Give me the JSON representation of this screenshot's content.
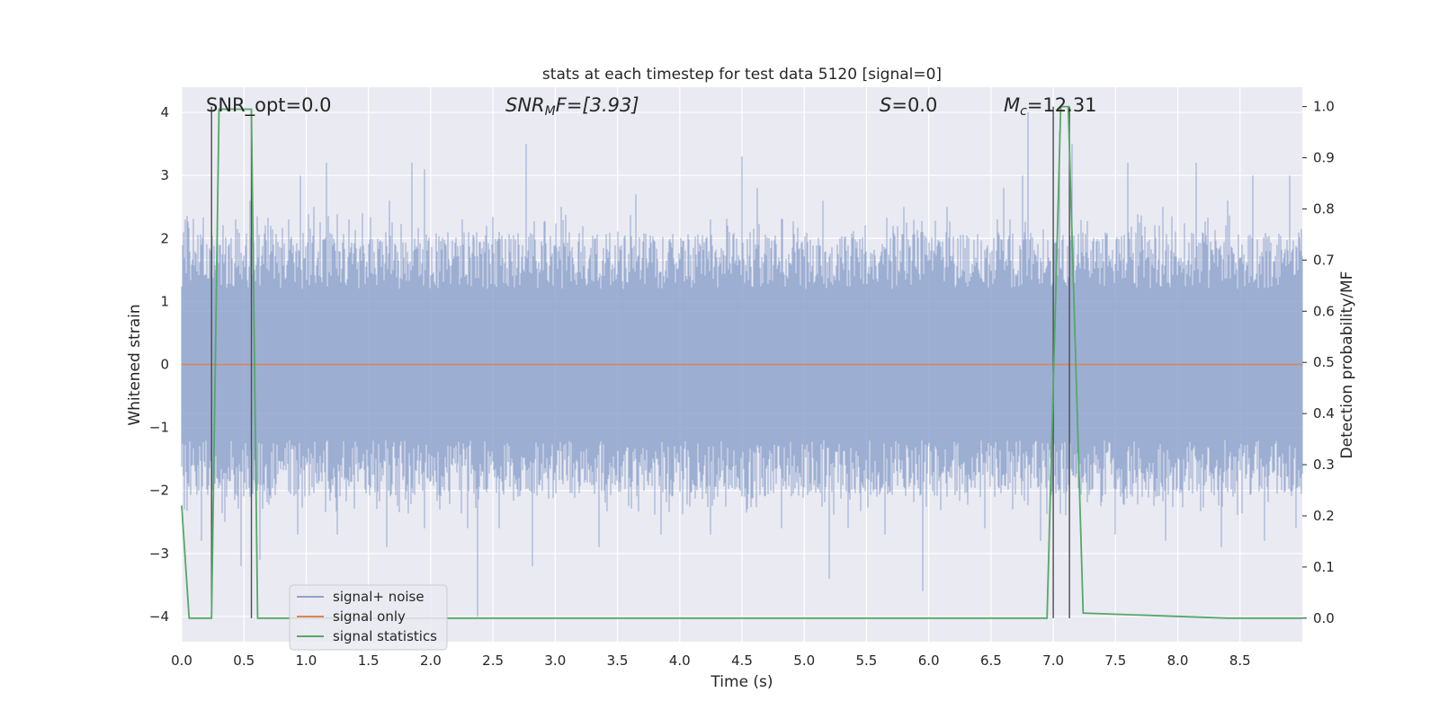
{
  "chart_data": {
    "type": "line",
    "title": "stats at each timestep for test data 5120 [signal=0]",
    "xlabel": "Time (s)",
    "ylabel": "Whitened strain",
    "y2label": "Detection probability/MF",
    "xlim": [
      0.0,
      9.0
    ],
    "ylim": [
      -4.4,
      4.4
    ],
    "y2lim": [
      -0.046,
      1.038
    ],
    "xticks": [
      "0.0",
      "0.5",
      "1.0",
      "1.5",
      "2.0",
      "2.5",
      "3.0",
      "3.5",
      "4.0",
      "4.5",
      "5.0",
      "5.5",
      "6.0",
      "6.5",
      "7.0",
      "7.5",
      "8.0",
      "8.5"
    ],
    "yticks": [
      "4",
      "3",
      "2",
      "1",
      "0",
      "−1",
      "−2",
      "−3",
      "−4"
    ],
    "y2ticks": [
      "1.0",
      "0.9",
      "0.8",
      "0.7",
      "0.6",
      "0.5",
      "0.4",
      "0.3",
      "0.2",
      "0.1",
      "0.0"
    ],
    "grid": true,
    "legend_position": "lower-left",
    "annotations": {
      "snr_opt": "SNR_opt=0.0",
      "snr_mf": "SNR",
      "snr_mf_sub": "M",
      "snr_mf_rest": "F=[3.93]",
      "s_label": "S",
      "s_value": "=0.0",
      "mc_label": "M",
      "mc_sub": "c",
      "mc_value": "=12.31"
    },
    "series": [
      {
        "name": "signal+ noise",
        "color": "#8ea3cc",
        "kind": "noise",
        "spikes_up": [
          [
            0.03,
            2.3
          ],
          [
            0.16,
            1.9
          ],
          [
            0.43,
            2.3
          ],
          [
            0.55,
            2.6
          ],
          [
            0.86,
            2.3
          ],
          [
            0.95,
            3.0
          ],
          [
            1.06,
            2.5
          ],
          [
            1.16,
            3.2
          ],
          [
            1.45,
            2.4
          ],
          [
            1.67,
            2.6
          ],
          [
            1.85,
            3.2
          ],
          [
            1.95,
            3.1
          ],
          [
            2.25,
            2.3
          ],
          [
            2.45,
            2.2
          ],
          [
            2.77,
            3.5
          ],
          [
            3.05,
            2.5
          ],
          [
            3.65,
            2.7
          ],
          [
            4.25,
            2.3
          ],
          [
            4.5,
            3.3
          ],
          [
            4.62,
            2.8
          ],
          [
            5.15,
            2.6
          ],
          [
            5.8,
            2.5
          ],
          [
            6.15,
            2.5
          ],
          [
            6.6,
            2.8
          ],
          [
            6.75,
            3.0
          ],
          [
            6.8,
            4.0
          ],
          [
            7.05,
            3.7
          ],
          [
            7.15,
            3.5
          ],
          [
            7.6,
            3.2
          ],
          [
            7.88,
            2.5
          ],
          [
            8.15,
            3.2
          ],
          [
            8.4,
            2.6
          ],
          [
            8.6,
            3.0
          ],
          [
            8.9,
            3.0
          ]
        ],
        "spikes_down": [
          [
            0.02,
            -2.3
          ],
          [
            0.16,
            -2.8
          ],
          [
            0.35,
            -2.5
          ],
          [
            0.48,
            -3.2
          ],
          [
            0.63,
            -3.1
          ],
          [
            0.93,
            -2.7
          ],
          [
            1.25,
            -2.7
          ],
          [
            1.65,
            -2.9
          ],
          [
            1.95,
            -2.6
          ],
          [
            2.3,
            -2.6
          ],
          [
            2.38,
            -4.0
          ],
          [
            2.55,
            -2.6
          ],
          [
            2.82,
            -3.2
          ],
          [
            3.35,
            -2.9
          ],
          [
            3.85,
            -2.7
          ],
          [
            4.25,
            -2.7
          ],
          [
            4.82,
            -2.6
          ],
          [
            5.2,
            -3.4
          ],
          [
            5.35,
            -2.6
          ],
          [
            5.65,
            -2.7
          ],
          [
            5.95,
            -3.6
          ],
          [
            6.45,
            -2.6
          ],
          [
            6.9,
            -2.8
          ],
          [
            7.5,
            -2.7
          ],
          [
            7.9,
            -2.8
          ],
          [
            8.35,
            -2.9
          ],
          [
            8.7,
            -2.8
          ],
          [
            8.95,
            -2.6
          ]
        ]
      },
      {
        "name": "signal only",
        "color": "#dd8452",
        "x": [
          0.0,
          9.0
        ],
        "y": [
          0.0,
          0.0
        ]
      },
      {
        "name": "signal statistics",
        "color": "#55a868",
        "axis": "right",
        "x": [
          0.0,
          0.06,
          0.24,
          0.3,
          0.56,
          0.61,
          6.95,
          7.06,
          7.12,
          7.24,
          8.4,
          9.0
        ],
        "y": [
          0.22,
          0.0,
          0.0,
          0.995,
          0.995,
          0.0,
          0.0,
          1.0,
          1.0,
          0.01,
          0.0,
          0.0
        ]
      }
    ],
    "right_hlines": [
      0.7,
      0.6,
      0.4
    ],
    "vlines": [
      {
        "x": 0.24,
        "y1": 0.0,
        "y2": 1.0
      },
      {
        "x": 0.56,
        "y1": 0.0,
        "y2": 0.99
      },
      {
        "x": 7.0,
        "y1": 0.0,
        "y2": 1.0
      },
      {
        "x": 7.13,
        "y1": 0.0,
        "y2": 1.0
      }
    ]
  }
}
